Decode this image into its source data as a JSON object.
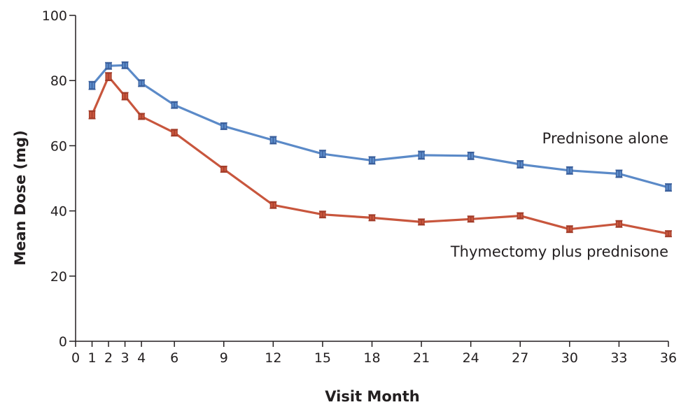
{
  "chart_data": {
    "type": "line",
    "title": "",
    "xlabel": "Visit Month",
    "ylabel": "Mean Dose (mg)",
    "xlim": [
      0,
      36
    ],
    "ylim": [
      0,
      100
    ],
    "x_ticks": [
      0,
      1,
      2,
      3,
      4,
      6,
      9,
      12,
      15,
      18,
      21,
      24,
      27,
      30,
      33,
      36
    ],
    "y_ticks": [
      0,
      20,
      40,
      60,
      80,
      100
    ],
    "grid": false,
    "legend": "direct labels at right end of lines",
    "x": [
      1,
      2,
      3,
      4,
      6,
      9,
      12,
      15,
      18,
      21,
      24,
      27,
      30,
      33,
      36
    ],
    "series": [
      {
        "name": "Prednisone alone",
        "color": "#5b8ac8",
        "marker_color": "#3a5f9c",
        "values": [
          78.5,
          84.5,
          84.7,
          79.2,
          72.5,
          66.0,
          61.7,
          57.5,
          55.5,
          57.1,
          56.9,
          54.3,
          52.4,
          51.4,
          47.2
        ],
        "error": [
          1.0,
          0.8,
          0.8,
          0.8,
          0.8,
          0.8,
          0.9,
          0.9,
          0.9,
          1.0,
          0.9,
          0.9,
          0.9,
          0.9,
          0.9
        ]
      },
      {
        "name": "Thymectomy plus prednisone",
        "color": "#c8563d",
        "marker_color": "#a33d2a",
        "values": [
          69.5,
          81.2,
          75.2,
          69.0,
          64.0,
          52.8,
          41.8,
          38.9,
          37.9,
          36.6,
          37.5,
          38.5,
          34.4,
          36.0,
          33.0
        ],
        "error": [
          1.0,
          1.0,
          0.9,
          0.7,
          0.8,
          0.7,
          0.8,
          0.8,
          0.7,
          0.7,
          0.7,
          0.7,
          0.8,
          0.8,
          0.7
        ]
      }
    ]
  }
}
